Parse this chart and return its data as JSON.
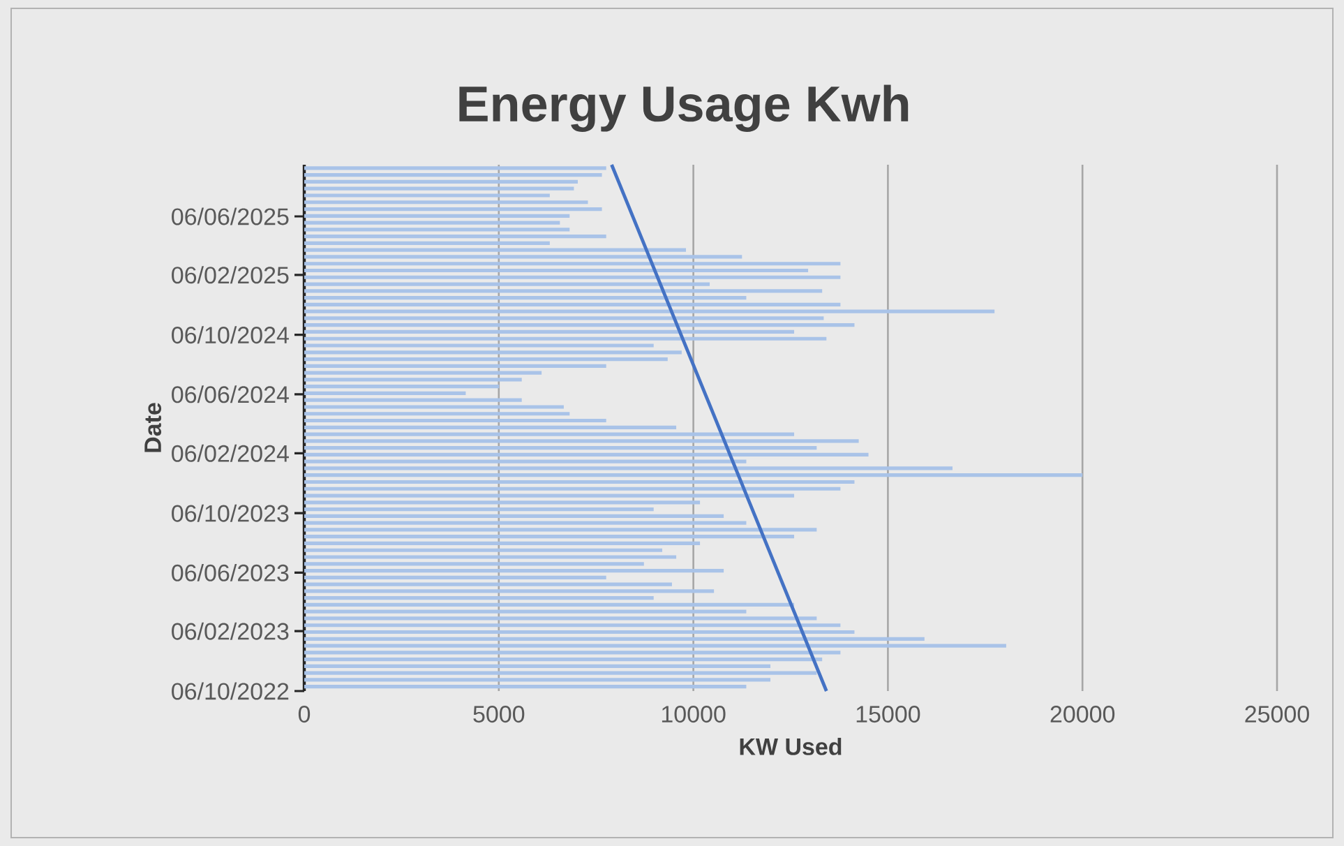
{
  "chart_data": {
    "type": "bar",
    "orientation": "horizontal",
    "title": "Energy Usage Kwh",
    "xlabel": "KW Used",
    "ylabel": "Date",
    "x": [
      "2022-10-15",
      "2022-10-29",
      "2022-11-12",
      "2022-11-26",
      "2022-12-10",
      "2022-12-24",
      "2023-01-07",
      "2023-01-21",
      "2023-02-04",
      "2023-02-18",
      "2023-03-04",
      "2023-03-18",
      "2023-04-01",
      "2023-04-15",
      "2023-04-29",
      "2023-05-13",
      "2023-05-27",
      "2023-06-10",
      "2023-06-24",
      "2023-07-08",
      "2023-07-22",
      "2023-08-05",
      "2023-08-19",
      "2023-09-02",
      "2023-09-16",
      "2023-09-30",
      "2023-10-14",
      "2023-10-28",
      "2023-11-11",
      "2023-11-25",
      "2023-12-09",
      "2023-12-23",
      "2024-01-06",
      "2024-01-20",
      "2024-02-03",
      "2024-02-17",
      "2024-03-02",
      "2024-03-16",
      "2024-03-30",
      "2024-04-13",
      "2024-04-27",
      "2024-05-11",
      "2024-05-25",
      "2024-06-08",
      "2024-06-22",
      "2024-07-06",
      "2024-07-20",
      "2024-08-03",
      "2024-08-17",
      "2024-08-31",
      "2024-09-14",
      "2024-09-28",
      "2024-10-12",
      "2024-10-26",
      "2024-11-09",
      "2024-11-23",
      "2024-12-07",
      "2024-12-21",
      "2025-01-04",
      "2025-01-18",
      "2025-02-01",
      "2025-02-15",
      "2025-03-01",
      "2025-03-15",
      "2025-03-29",
      "2025-04-12",
      "2025-04-26",
      "2025-05-10",
      "2025-05-24",
      "2025-06-07",
      "2025-06-21",
      "2025-07-05",
      "2025-07-19",
      "2025-08-02",
      "2025-08-16",
      "2025-08-30",
      "2025-09-13"
    ],
    "series": [
      {
        "color": "#a9c3e8",
        "values": [
          11360,
          11980,
          13170,
          11980,
          13310,
          13780,
          18040,
          15940,
          14140,
          13780,
          13170,
          11360,
          12590,
          8980,
          10530,
          9450,
          7760,
          10780,
          8730,
          9560,
          9200,
          10170,
          12590,
          13170,
          11360,
          10780,
          8980,
          10170,
          12590,
          13780,
          14140,
          20000,
          16660,
          11360,
          14500,
          13170,
          14250,
          12590,
          9560,
          7760,
          6820,
          6670,
          5590,
          4150,
          5010,
          5590,
          6100,
          7760,
          9340,
          9700,
          8980,
          13420,
          12590,
          14140,
          13350,
          17740,
          13780,
          11360,
          13310,
          10420,
          13780,
          12950,
          13780,
          11250,
          9810,
          6310,
          7760,
          6820,
          6570,
          6820,
          7650,
          7290,
          6310,
          6930,
          7030,
          7650,
          7760
        ]
      },
      {
        "type": "line",
        "color": "#4472c4",
        "x": [
          "2022-10-06",
          "2025-09-20"
        ],
        "values": [
          13420,
          7900
        ]
      }
    ],
    "xlim": [
      0,
      25000
    ],
    "xticks": [
      0,
      5000,
      10000,
      15000,
      20000,
      25000
    ],
    "ylim": [
      "2022-10-06",
      "2025-09-20"
    ],
    "yticks": [
      {
        "value": "2022-10-06",
        "label": "06/10/2022"
      },
      {
        "value": "2023-02-06",
        "label": "06/02/2023"
      },
      {
        "value": "2023-06-06",
        "label": "06/06/2023"
      },
      {
        "value": "2023-10-06",
        "label": "06/10/2023"
      },
      {
        "value": "2024-02-06",
        "label": "06/02/2024"
      },
      {
        "value": "2024-06-06",
        "label": "06/06/2024"
      },
      {
        "value": "2024-10-06",
        "label": "06/10/2024"
      },
      {
        "value": "2025-02-06",
        "label": "06/02/2025"
      },
      {
        "value": "2025-06-06",
        "label": "06/06/2025"
      }
    ],
    "grid": "x"
  }
}
